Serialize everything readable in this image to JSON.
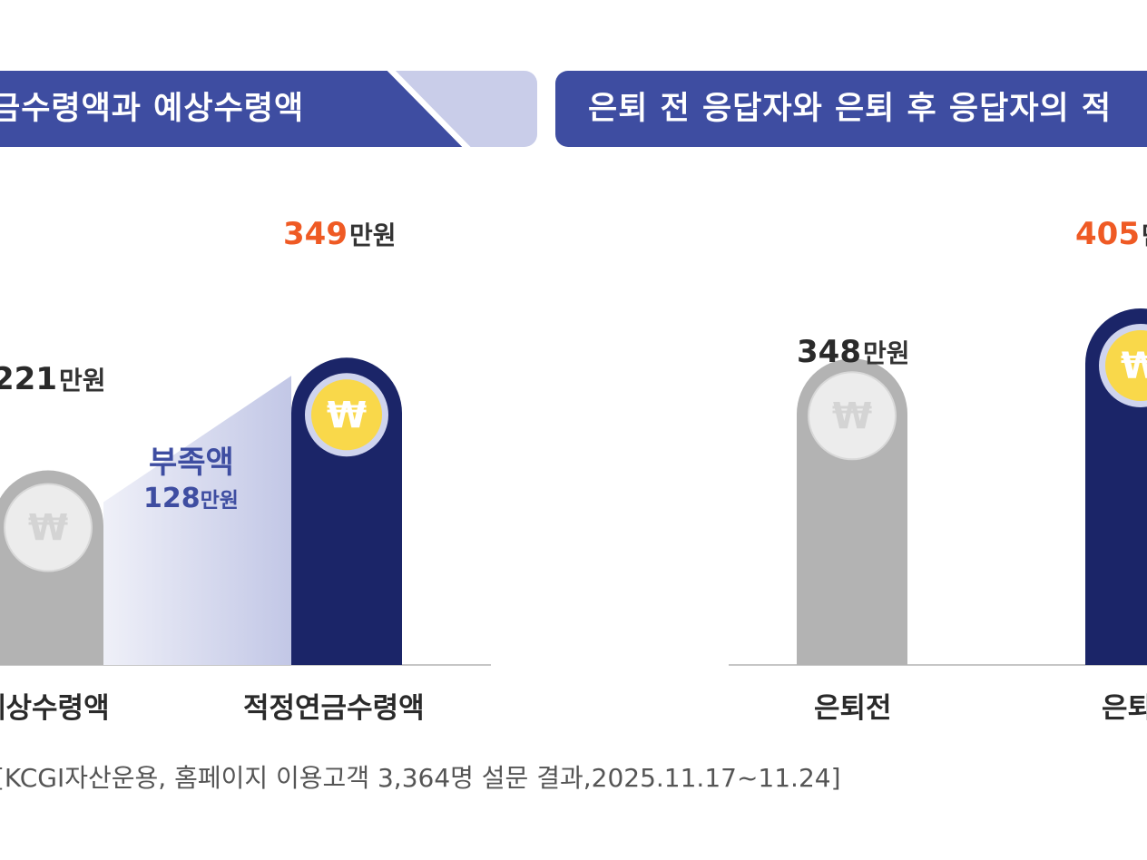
{
  "left_banner": {
    "title": "금수령액과 예상수령액"
  },
  "right_banner": {
    "title": "은퇴 전 응답자와 은퇴 후 응답자의 적"
  },
  "won_symbol": "₩",
  "colors": {
    "navy": "#1b2568",
    "gray": "#b3b3b3",
    "accent": "#ef5a24",
    "shortfall": "#3e4da1",
    "coin_gold": "#f9d84a"
  },
  "chart_data": [
    {
      "type": "bar",
      "title": "금수령액과 예상수령액",
      "categories": [
        "예상수령액",
        "적정연금수령액"
      ],
      "values": [
        221,
        349
      ],
      "value_labels": [
        "221",
        "349"
      ],
      "unit": "만원",
      "annotation": {
        "label": "부족액",
        "value": "128",
        "unit": "만원"
      }
    },
    {
      "type": "bar",
      "title": "은퇴 전 응답자와 은퇴 후 응답자의 적",
      "categories": [
        "은퇴전",
        "은퇴"
      ],
      "values": [
        348,
        405
      ],
      "value_labels": [
        "348",
        "405"
      ],
      "unit": "만원"
    }
  ],
  "source": "[KCGI자산운용, 홈페이지 이용고객 3,364명 설문 결과,2025.11.17~11.24]"
}
